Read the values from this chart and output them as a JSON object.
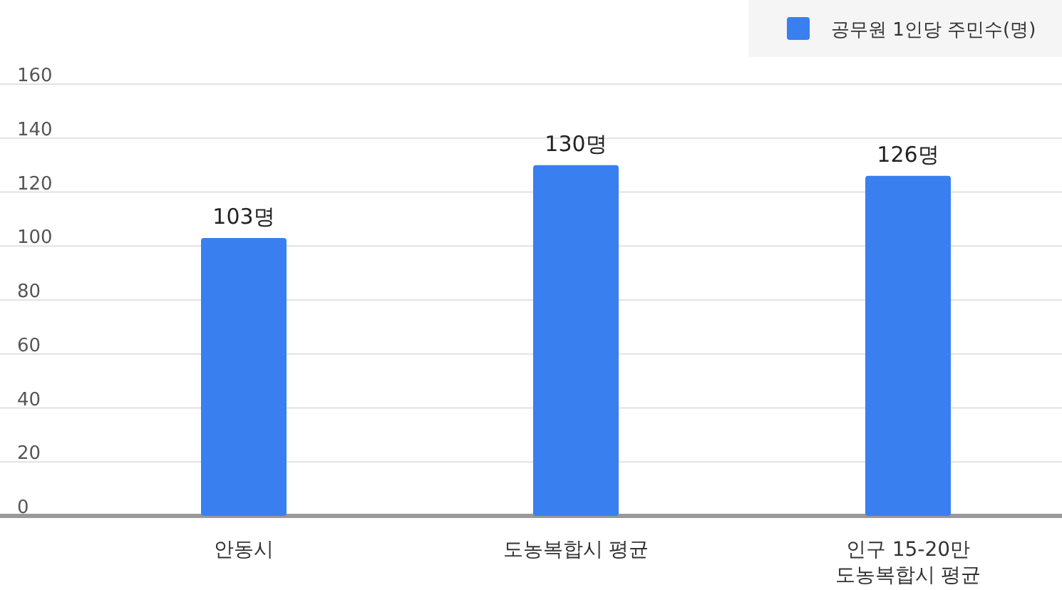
{
  "chart_data": {
    "type": "bar",
    "categories": [
      "안동시",
      "도농복합시 평균",
      "인구 15-20만\n도농복합시 평균"
    ],
    "series": [
      {
        "name": "공무원 1인당 주민수(명)",
        "color": "#3a7ff0",
        "values": [
          103,
          130,
          126
        ],
        "value_labels": [
          "103명",
          "130명",
          "126명"
        ]
      }
    ],
    "ylim": [
      0,
      160
    ],
    "yticks": [
      0,
      20,
      40,
      60,
      80,
      100,
      120,
      140,
      160
    ],
    "grid": "y",
    "legend": "top right"
  }
}
